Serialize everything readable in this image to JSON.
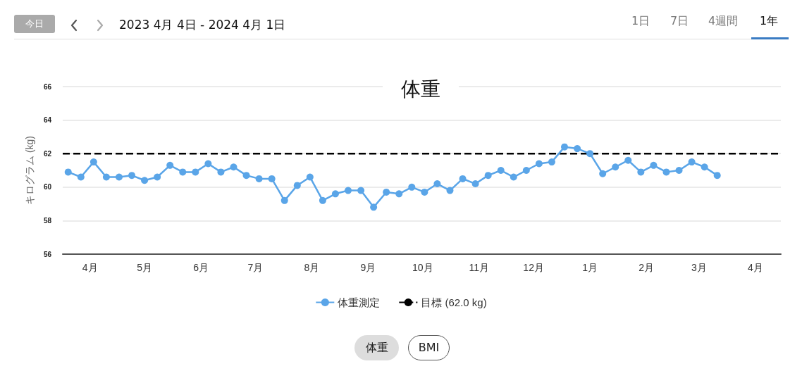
{
  "chart_data": {
    "type": "line",
    "title": "体重",
    "ylabel": "キログラム (kg)",
    "x": [
      "2023-04-04",
      "2023-04-11",
      "2023-04-18",
      "2023-04-25",
      "2023-05-02",
      "2023-05-09",
      "2023-05-16",
      "2023-05-23",
      "2023-05-30",
      "2023-06-06",
      "2023-06-13",
      "2023-06-20",
      "2023-06-27",
      "2023-07-04",
      "2023-07-11",
      "2023-07-18",
      "2023-07-25",
      "2023-08-01",
      "2023-08-08",
      "2023-08-15",
      "2023-08-22",
      "2023-08-29",
      "2023-09-05",
      "2023-09-12",
      "2023-09-19",
      "2023-09-26",
      "2023-10-03",
      "2023-10-10",
      "2023-10-17",
      "2023-10-24",
      "2023-10-31",
      "2023-11-07",
      "2023-11-14",
      "2023-11-21",
      "2023-11-28",
      "2023-12-05",
      "2023-12-12",
      "2023-12-19",
      "2023-12-26",
      "2024-01-02",
      "2024-01-09",
      "2024-01-16",
      "2024-01-23",
      "2024-01-30",
      "2024-02-06",
      "2024-02-13",
      "2024-02-20",
      "2024-02-27",
      "2024-03-05",
      "2024-03-12",
      "2024-03-19",
      "2024-03-26"
    ],
    "series": [
      {
        "name": "体重測定",
        "color": "#5aa5e8",
        "values": [
          60.9,
          60.6,
          61.5,
          60.6,
          60.6,
          60.7,
          60.4,
          60.6,
          61.3,
          60.9,
          60.9,
          61.4,
          60.9,
          61.2,
          60.7,
          60.5,
          60.5,
          59.2,
          60.1,
          60.6,
          59.2,
          59.6,
          59.8,
          59.8,
          58.8,
          59.7,
          59.6,
          60.0,
          59.7,
          60.2,
          59.8,
          60.5,
          60.2,
          60.7,
          61.0,
          60.6,
          61.0,
          61.4,
          61.5,
          62.4,
          62.3,
          62.0,
          60.8,
          61.2,
          61.6,
          60.9,
          61.3,
          60.9,
          61.0,
          61.5,
          61.2,
          60.7
        ]
      }
    ],
    "ref_lines": [
      {
        "axis": "y",
        "value": 62,
        "label": "目標 (62.0 kg)",
        "color": "#000000",
        "line_style": "dashed"
      }
    ],
    "xlim": [
      "2023-04-01",
      "2024-04-30"
    ],
    "xticks": [
      {
        "value": "2023-04-16",
        "label": "4月"
      },
      {
        "value": "2023-05-16",
        "label": "5月"
      },
      {
        "value": "2023-06-16",
        "label": "6月"
      },
      {
        "value": "2023-07-16",
        "label": "7月"
      },
      {
        "value": "2023-08-16",
        "label": "8月"
      },
      {
        "value": "2023-09-16",
        "label": "9月"
      },
      {
        "value": "2023-10-16",
        "label": "10月"
      },
      {
        "value": "2023-11-16",
        "label": "11月"
      },
      {
        "value": "2023-12-16",
        "label": "12月"
      },
      {
        "value": "2024-01-16",
        "label": "1月"
      },
      {
        "value": "2024-02-16",
        "label": "2月"
      },
      {
        "value": "2024-03-16",
        "label": "3月"
      },
      {
        "value": "2024-04-16",
        "label": "4月"
      }
    ],
    "ylim": [
      56,
      66
    ],
    "yticks": [
      56,
      58,
      60,
      62,
      64,
      66
    ],
    "grid": "y",
    "legend": "bottom",
    "marker": "circle",
    "line_style": "solid",
    "annotations": [
      "今日",
      "2023 4月 4日 - 2024 4月 1日",
      "1日",
      "7日",
      "4週間",
      "1年",
      "体重",
      "BMI"
    ]
  }
}
